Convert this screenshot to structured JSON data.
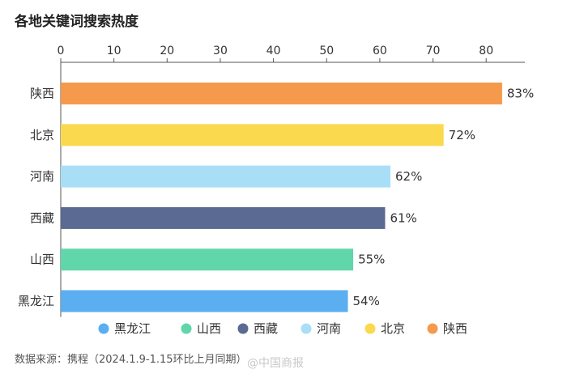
{
  "chart_data": {
    "type": "bar",
    "orientation": "horizontal",
    "title": "各地关键词搜索热度",
    "categories": [
      "陕西",
      "北京",
      "河南",
      "西藏",
      "山西",
      "黑龙江"
    ],
    "values": [
      83,
      72,
      62,
      61,
      55,
      54
    ],
    "value_labels": [
      "83%",
      "72%",
      "62%",
      "61%",
      "55%",
      "54%"
    ],
    "colors": [
      "#F59A4C",
      "#FBD94F",
      "#A8DFF7",
      "#5A6A92",
      "#61D6AB",
      "#5BAEF0"
    ],
    "x_ticks": [
      "0",
      "10",
      "20",
      "30",
      "40",
      "50",
      "60",
      "70",
      "80"
    ],
    "xlim": [
      0,
      80
    ],
    "x_axis_position": "top",
    "grid": false,
    "legend_position": "bottom",
    "legend": [
      {
        "label": "黑龙江",
        "color": "#5BAEF0"
      },
      {
        "label": "山西",
        "color": "#61D6AB"
      },
      {
        "label": "西藏",
        "color": "#5A6A92"
      },
      {
        "label": "河南",
        "color": "#A8DFF7"
      },
      {
        "label": "北京",
        "color": "#FBD94F"
      },
      {
        "label": "陕西",
        "color": "#F59A4C"
      }
    ]
  },
  "source_note": "数据来源：携程（2024.1.9-1.15环比上月同期）",
  "watermark": "@中国商报"
}
